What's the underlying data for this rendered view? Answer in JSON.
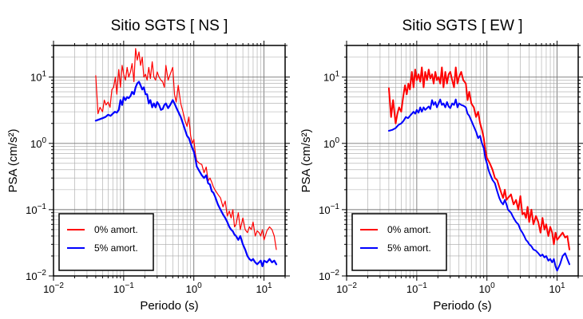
{
  "chart_data": [
    {
      "type": "line",
      "title": "Sitio SGTS [ NS ]",
      "xlabel": "Periodo (s)",
      "ylabel": "PSA (cm/s²)",
      "xscale": "log",
      "yscale": "log",
      "xlim": [
        0.01,
        20
      ],
      "ylim": [
        0.01,
        30
      ],
      "xticks": [
        {
          "value": 0.01,
          "base": "10",
          "exp": "−2"
        },
        {
          "value": 0.1,
          "base": "10",
          "exp": "−1"
        },
        {
          "value": 1,
          "base": "10",
          "exp": "0"
        },
        {
          "value": 10,
          "base": "10",
          "exp": "1"
        }
      ],
      "yticks": [
        {
          "value": 0.01,
          "base": "10",
          "exp": "−2"
        },
        {
          "value": 0.1,
          "base": "10",
          "exp": "−1"
        },
        {
          "value": 1,
          "base": "10",
          "exp": "0"
        },
        {
          "value": 10,
          "base": "10",
          "exp": "1"
        }
      ],
      "grid": true,
      "legend": "bottom-left",
      "series": [
        {
          "name": "0% amort.",
          "color": "#ff0000",
          "width": 1.2,
          "x": [
            0.04,
            0.043,
            0.046,
            0.05,
            0.053,
            0.056,
            0.06,
            0.064,
            0.068,
            0.072,
            0.076,
            0.08,
            0.085,
            0.09,
            0.095,
            0.1,
            0.106,
            0.112,
            0.118,
            0.125,
            0.132,
            0.14,
            0.148,
            0.156,
            0.165,
            0.174,
            0.184,
            0.194,
            0.205,
            0.216,
            0.228,
            0.24,
            0.255,
            0.27,
            0.285,
            0.3,
            0.32,
            0.34,
            0.36,
            0.38,
            0.4,
            0.43,
            0.46,
            0.5,
            0.53,
            0.56,
            0.6,
            0.65,
            0.7,
            0.75,
            0.8,
            0.85,
            0.9,
            0.95,
            1.0,
            1.05,
            1.1,
            1.2,
            1.3,
            1.4,
            1.5,
            1.6,
            1.7,
            1.8,
            1.9,
            2.0,
            2.2,
            2.4,
            2.6,
            2.8,
            3.0,
            3.2,
            3.4,
            3.6,
            3.8,
            4.0,
            4.3,
            4.6,
            5.0,
            5.4,
            5.8,
            6.2,
            6.6,
            7.0,
            7.5,
            8.0,
            8.5,
            9.0,
            9.5,
            10.0,
            11.0,
            12.0,
            13.0,
            14.0,
            15.0
          ],
          "y": [
            10.5,
            2.8,
            3.5,
            3.0,
            4.5,
            3.8,
            4.2,
            3.5,
            6.5,
            7.0,
            10.0,
            5.5,
            13.0,
            7.0,
            15.0,
            11.0,
            9.0,
            14.0,
            10.0,
            12.0,
            16.0,
            8.5,
            27.0,
            18.0,
            24.0,
            15.0,
            20.0,
            10.0,
            11.0,
            9.0,
            14.0,
            9.5,
            17.0,
            10.0,
            9.0,
            12.0,
            10.0,
            9.0,
            8.5,
            7.0,
            15.0,
            9.0,
            11.0,
            14.0,
            5.5,
            4.2,
            7.5,
            4.0,
            3.0,
            2.2,
            1.8,
            2.5,
            1.3,
            1.0,
            1.15,
            0.7,
            0.55,
            0.5,
            0.48,
            0.36,
            0.44,
            0.27,
            0.3,
            0.26,
            0.22,
            0.2,
            0.17,
            0.15,
            0.11,
            0.135,
            0.08,
            0.095,
            0.075,
            0.1,
            0.055,
            0.06,
            0.09,
            0.05,
            0.075,
            0.05,
            0.045,
            0.055,
            0.05,
            0.065,
            0.04,
            0.048,
            0.045,
            0.04,
            0.05,
            0.035,
            0.048,
            0.055,
            0.05,
            0.04,
            0.025
          ]
        },
        {
          "name": "5% amort.",
          "color": "#0000ff",
          "width": 2.2,
          "x": [
            0.04,
            0.045,
            0.05,
            0.055,
            0.06,
            0.065,
            0.07,
            0.075,
            0.08,
            0.085,
            0.09,
            0.095,
            0.1,
            0.106,
            0.112,
            0.118,
            0.125,
            0.132,
            0.14,
            0.148,
            0.156,
            0.165,
            0.174,
            0.184,
            0.194,
            0.205,
            0.216,
            0.228,
            0.24,
            0.255,
            0.27,
            0.285,
            0.3,
            0.32,
            0.34,
            0.36,
            0.38,
            0.4,
            0.43,
            0.46,
            0.5,
            0.53,
            0.56,
            0.6,
            0.65,
            0.7,
            0.75,
            0.8,
            0.85,
            0.9,
            0.95,
            1.0,
            1.05,
            1.1,
            1.2,
            1.3,
            1.4,
            1.5,
            1.6,
            1.7,
            1.8,
            1.9,
            2.0,
            2.2,
            2.4,
            2.6,
            2.8,
            3.0,
            3.2,
            3.4,
            3.6,
            3.8,
            4.0,
            4.3,
            4.6,
            5.0,
            5.4,
            5.8,
            6.2,
            6.6,
            7.0,
            7.5,
            8.0,
            8.5,
            9.0,
            9.5,
            10.0,
            11.0,
            12.0,
            13.0,
            14.0,
            15.0
          ],
          "y": [
            2.2,
            2.3,
            2.4,
            2.5,
            2.7,
            2.6,
            2.8,
            3.0,
            2.9,
            3.2,
            4.5,
            3.8,
            5.0,
            4.5,
            5.0,
            4.8,
            5.2,
            6.0,
            5.5,
            7.0,
            8.0,
            8.5,
            7.5,
            6.5,
            7.0,
            5.5,
            5.5,
            4.0,
            4.5,
            3.5,
            4.0,
            3.5,
            4.2,
            3.8,
            3.2,
            3.3,
            3.8,
            4.0,
            3.4,
            3.8,
            4.5,
            4.0,
            3.5,
            3.0,
            2.5,
            2.0,
            1.6,
            1.3,
            1.2,
            1.0,
            0.85,
            0.75,
            0.6,
            0.45,
            0.38,
            0.33,
            0.3,
            0.33,
            0.25,
            0.24,
            0.19,
            0.18,
            0.16,
            0.12,
            0.1,
            0.085,
            0.075,
            0.065,
            0.055,
            0.05,
            0.047,
            0.042,
            0.04,
            0.035,
            0.04,
            0.03,
            0.025,
            0.02,
            0.018,
            0.017,
            0.018,
            0.016,
            0.015,
            0.016,
            0.017,
            0.014,
            0.017,
            0.016,
            0.018,
            0.016,
            0.017,
            0.015
          ]
        }
      ]
    },
    {
      "type": "line",
      "title": "Sitio SGTS [ EW ]",
      "xlabel": "Periodo (s)",
      "ylabel": "PSA (cm/s²)",
      "xscale": "log",
      "yscale": "log",
      "xlim": [
        0.01,
        20
      ],
      "ylim": [
        0.01,
        30
      ],
      "xticks": [
        {
          "value": 0.01,
          "base": "10",
          "exp": "−2"
        },
        {
          "value": 0.1,
          "base": "10",
          "exp": "−1"
        },
        {
          "value": 1,
          "base": "10",
          "exp": "0"
        },
        {
          "value": 10,
          "base": "10",
          "exp": "1"
        }
      ],
      "yticks": [
        {
          "value": 0.01,
          "base": "10",
          "exp": "−2"
        },
        {
          "value": 0.1,
          "base": "10",
          "exp": "−1"
        },
        {
          "value": 1,
          "base": "10",
          "exp": "0"
        },
        {
          "value": 10,
          "base": "10",
          "exp": "1"
        }
      ],
      "grid": true,
      "legend": "bottom-left",
      "series": [
        {
          "name": "0% amort.",
          "color": "#ff0000",
          "width": 2.0,
          "x": [
            0.04,
            0.043,
            0.046,
            0.05,
            0.053,
            0.056,
            0.06,
            0.064,
            0.068,
            0.072,
            0.076,
            0.08,
            0.085,
            0.09,
            0.095,
            0.1,
            0.106,
            0.112,
            0.118,
            0.125,
            0.132,
            0.14,
            0.148,
            0.156,
            0.165,
            0.174,
            0.184,
            0.194,
            0.205,
            0.216,
            0.228,
            0.24,
            0.255,
            0.27,
            0.285,
            0.3,
            0.32,
            0.34,
            0.36,
            0.38,
            0.4,
            0.43,
            0.46,
            0.5,
            0.53,
            0.56,
            0.6,
            0.65,
            0.7,
            0.75,
            0.8,
            0.85,
            0.9,
            0.95,
            1.0,
            1.05,
            1.1,
            1.2,
            1.3,
            1.4,
            1.5,
            1.6,
            1.7,
            1.8,
            1.9,
            2.0,
            2.2,
            2.4,
            2.6,
            2.8,
            3.0,
            3.2,
            3.4,
            3.6,
            3.8,
            4.0,
            4.3,
            4.6,
            5.0,
            5.4,
            5.8,
            6.2,
            6.6,
            7.0,
            7.5,
            8.0,
            8.5,
            9.0,
            9.5,
            10.0,
            11.0,
            12.0,
            13.0,
            14.0,
            15.0
          ],
          "y": [
            6.8,
            2.5,
            4.5,
            2.0,
            2.8,
            3.5,
            3.0,
            5.0,
            7.5,
            5.5,
            8.0,
            6.5,
            12.0,
            7.0,
            13.0,
            9.0,
            11.0,
            8.5,
            14.0,
            7.0,
            12.0,
            9.0,
            13.0,
            9.5,
            11.0,
            8.0,
            12.0,
            9.0,
            10.0,
            8.0,
            14.0,
            7.0,
            12.0,
            8.0,
            11.0,
            12.0,
            9.0,
            7.0,
            14.0,
            8.0,
            10.0,
            12.0,
            9.0,
            8.0,
            4.5,
            6.0,
            4.0,
            3.5,
            2.5,
            3.0,
            2.0,
            1.6,
            1.2,
            0.8,
            0.6,
            0.55,
            0.5,
            0.4,
            0.3,
            0.28,
            0.22,
            0.18,
            0.15,
            0.2,
            0.14,
            0.15,
            0.17,
            0.12,
            0.14,
            0.1,
            0.16,
            0.085,
            0.09,
            0.075,
            0.11,
            0.065,
            0.1,
            0.06,
            0.08,
            0.065,
            0.045,
            0.075,
            0.05,
            0.06,
            0.04,
            0.055,
            0.045,
            0.03,
            0.045,
            0.035,
            0.04,
            0.045,
            0.038,
            0.04,
            0.025
          ]
        },
        {
          "name": "5% amort.",
          "color": "#0000ff",
          "width": 2.0,
          "x": [
            0.04,
            0.045,
            0.05,
            0.055,
            0.06,
            0.065,
            0.07,
            0.075,
            0.08,
            0.085,
            0.09,
            0.095,
            0.1,
            0.106,
            0.112,
            0.118,
            0.125,
            0.132,
            0.14,
            0.148,
            0.156,
            0.165,
            0.174,
            0.184,
            0.194,
            0.205,
            0.216,
            0.228,
            0.24,
            0.255,
            0.27,
            0.285,
            0.3,
            0.32,
            0.34,
            0.36,
            0.38,
            0.4,
            0.43,
            0.46,
            0.5,
            0.53,
            0.56,
            0.6,
            0.65,
            0.7,
            0.75,
            0.8,
            0.85,
            0.9,
            0.95,
            1.0,
            1.05,
            1.1,
            1.2,
            1.3,
            1.4,
            1.5,
            1.6,
            1.7,
            1.8,
            1.9,
            2.0,
            2.2,
            2.4,
            2.6,
            2.8,
            3.0,
            3.2,
            3.4,
            3.6,
            3.8,
            4.0,
            4.3,
            4.6,
            5.0,
            5.4,
            5.8,
            6.2,
            6.6,
            7.0,
            7.5,
            8.0,
            8.5,
            9.0,
            9.5,
            10.0,
            11.0,
            12.0,
            13.0,
            14.0,
            15.0
          ],
          "y": [
            1.55,
            1.6,
            1.7,
            1.9,
            2.0,
            2.2,
            2.5,
            2.4,
            2.6,
            2.8,
            3.0,
            2.8,
            3.2,
            2.9,
            3.5,
            3.0,
            3.5,
            3.2,
            3.4,
            3.6,
            3.3,
            4.5,
            3.8,
            4.2,
            3.5,
            4.0,
            4.6,
            3.8,
            4.0,
            3.5,
            4.2,
            3.6,
            3.4,
            4.0,
            3.8,
            4.6,
            3.5,
            4.0,
            3.8,
            3.7,
            3.5,
            2.8,
            2.6,
            2.2,
            1.8,
            1.5,
            1.2,
            1.3,
            1.0,
            0.85,
            0.6,
            0.5,
            0.4,
            0.35,
            0.28,
            0.25,
            0.19,
            0.15,
            0.13,
            0.12,
            0.14,
            0.12,
            0.1,
            0.09,
            0.075,
            0.065,
            0.06,
            0.05,
            0.045,
            0.04,
            0.035,
            0.033,
            0.03,
            0.028,
            0.025,
            0.024,
            0.022,
            0.02,
            0.021,
            0.019,
            0.02,
            0.017,
            0.018,
            0.016,
            0.018,
            0.014,
            0.012,
            0.015,
            0.02,
            0.022,
            0.018,
            0.015
          ]
        }
      ]
    }
  ]
}
